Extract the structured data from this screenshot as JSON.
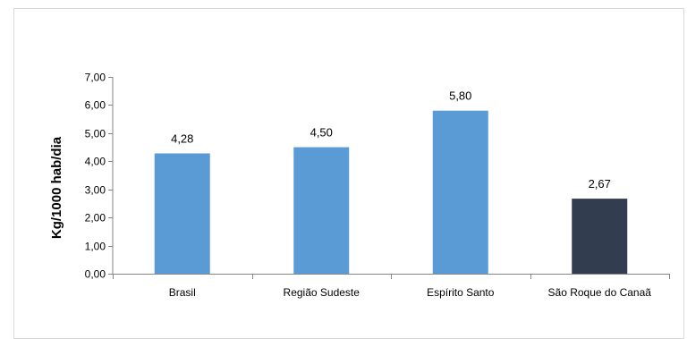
{
  "chart_data": {
    "type": "bar",
    "title": "",
    "xlabel": "",
    "ylabel": "Kg/1000 hab/dia",
    "ylim": [
      0,
      7
    ],
    "yticks": [
      "0,00",
      "1,00",
      "2,00",
      "3,00",
      "4,00",
      "5,00",
      "6,00",
      "7,00"
    ],
    "grid": false,
    "legend": "none",
    "categories": [
      "Brasil",
      "Região Sudeste",
      "Espírito Santo",
      "São Roque do Canaã"
    ],
    "values": [
      4.28,
      4.5,
      5.8,
      2.67
    ],
    "data_labels": [
      "4,28",
      "4,50",
      "5,80",
      "2,67"
    ],
    "colors": [
      "#5b9bd5",
      "#5b9bd5",
      "#5b9bd5",
      "#323e4f"
    ],
    "axis_color": "#868686"
  }
}
